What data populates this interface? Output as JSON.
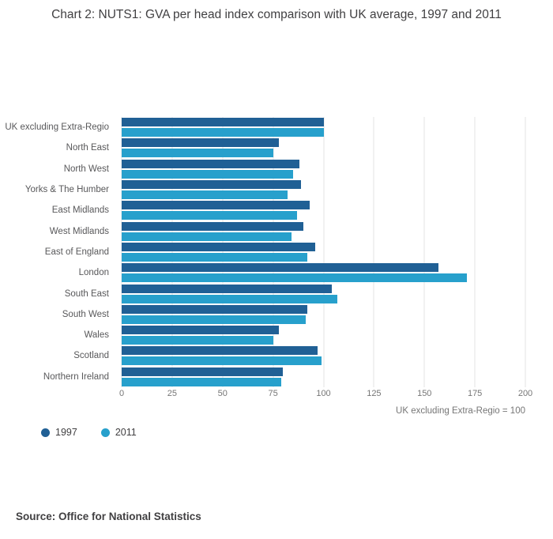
{
  "page": {
    "source": "Source: Office for National Statistics"
  },
  "chart_data": {
    "type": "bar",
    "orientation": "horizontal",
    "title": "Chart 2: NUTS1: GVA per head index comparison with UK average, 1997 and 2011",
    "categories": [
      "UK excluding Extra-Regio",
      "North East",
      "North West",
      "Yorks & The Humber",
      "East Midlands",
      "West Midlands",
      "East of England",
      "London",
      "South East",
      "South West",
      "Wales",
      "Scotland",
      "Northern Ireland"
    ],
    "series": [
      {
        "name": "1997",
        "color": "#206095",
        "values": [
          100,
          78,
          88,
          89,
          93,
          90,
          96,
          157,
          104,
          92,
          78,
          97,
          80
        ]
      },
      {
        "name": "2011",
        "color": "#27A0CC",
        "values": [
          100,
          75,
          85,
          82,
          87,
          84,
          92,
          171,
          107,
          91,
          75,
          99,
          79
        ]
      }
    ],
    "xlabel": "UK excluding Extra-Regio = 100",
    "xlim": [
      0,
      200
    ],
    "xticks": [
      0,
      25,
      50,
      75,
      100,
      125,
      150,
      175,
      200
    ],
    "grid": true,
    "legend_position": "bottom-left"
  }
}
